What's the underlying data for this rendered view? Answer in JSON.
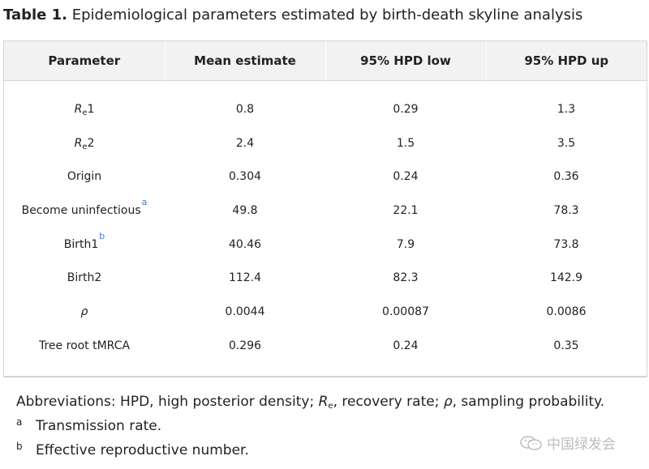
{
  "title": {
    "label": "Table 1.",
    "text": "Epidemiological parameters estimated by birth-death skyline analysis"
  },
  "table": {
    "headers": [
      "Parameter",
      "Mean estimate",
      "95% HPD low",
      "95% HPD up"
    ],
    "rows": [
      {
        "param_main": "R",
        "param_sub": "e",
        "param_tail": "1",
        "param_sup": "",
        "mean": "0.8",
        "low": "0.29",
        "up": "1.3"
      },
      {
        "param_main": "R",
        "param_sub": "e",
        "param_tail": "2",
        "param_sup": "",
        "mean": "2.4",
        "low": "1.5",
        "up": "3.5"
      },
      {
        "param_main": "Origin",
        "param_sub": "",
        "param_tail": "",
        "param_sup": "",
        "mean": "0.304",
        "low": "0.24",
        "up": "0.36"
      },
      {
        "param_main": "Become uninfectious",
        "param_sub": "",
        "param_tail": "",
        "param_sup": "a",
        "mean": "49.8",
        "low": "22.1",
        "up": "78.3"
      },
      {
        "param_main": "Birth1",
        "param_sub": "",
        "param_tail": "",
        "param_sup": "b",
        "mean": "40.46",
        "low": "7.9",
        "up": "73.8"
      },
      {
        "param_main": "Birth2",
        "param_sub": "",
        "param_tail": "",
        "param_sup": "",
        "mean": "112.4",
        "low": "82.3",
        "up": "142.9"
      },
      {
        "param_main": "ρ",
        "param_sub": "",
        "param_tail": "",
        "param_sup": "",
        "mean": "0.0044",
        "low": "0.00087",
        "up": "0.0086"
      },
      {
        "param_main": "Tree root tMRCA",
        "param_sub": "",
        "param_tail": "",
        "param_sup": "",
        "mean": "0.296",
        "low": "0.24",
        "up": "0.35"
      }
    ]
  },
  "abbreviations": {
    "prefix": "Abbreviations: HPD, high posterior density; ",
    "re_main": "R",
    "re_sub": "e",
    "middle": ", recovery rate; ",
    "rho": "ρ",
    "suffix": ", sampling probability."
  },
  "footnotes": [
    {
      "mark": "a",
      "text": "Transmission rate."
    },
    {
      "mark": "b",
      "text": "Effective reproductive number."
    }
  ],
  "watermark": {
    "text": "中国绿发会",
    "icon": "wechat-icon"
  }
}
